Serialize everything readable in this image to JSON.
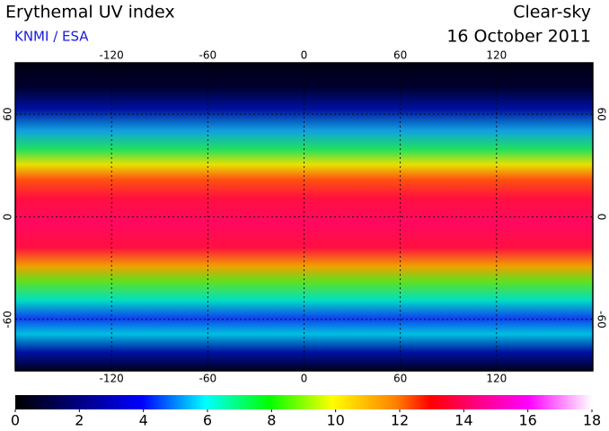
{
  "header": {
    "title": "Erythemal UV index",
    "source": "KNMI / ESA",
    "condition": "Clear-sky",
    "date": "16 October 2011"
  },
  "map": {
    "xlim": [
      -180,
      180
    ],
    "ylim": [
      -90,
      90
    ],
    "xticks": [
      -120,
      -60,
      0,
      60,
      120
    ],
    "yticks": [
      60,
      0,
      -60
    ]
  },
  "colorbar": {
    "lim": [
      0,
      18
    ],
    "ticks": [
      0,
      2,
      4,
      6,
      8,
      10,
      12,
      14,
      16,
      18
    ]
  }
}
